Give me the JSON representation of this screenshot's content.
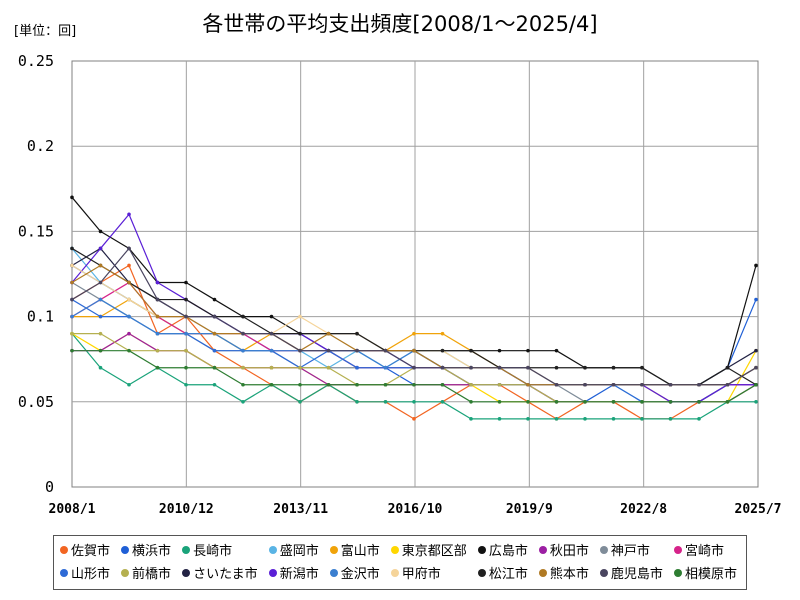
{
  "unit_label": "[単位：回]",
  "chart_data": {
    "type": "line",
    "title": "各世帯の平均支出頻度[2008/1～2025/4]",
    "xlabel": "",
    "ylabel": "",
    "x_start": "2008/1",
    "x_end": "2025/4",
    "ylim": [
      0,
      0.25
    ],
    "y_ticks": [
      "0",
      "0.05",
      "0.1",
      "0.15",
      "0.2",
      "0.25"
    ],
    "x_ticks": [
      "2008/1",
      "2010/12",
      "2013/11",
      "2016/10",
      "2019/9",
      "2022/8",
      "2025/7"
    ],
    "grid": true,
    "legend_position": "bottom",
    "series": [
      {
        "name": "佐賀市",
        "color": "#f26522",
        "values": [
          0.11,
          0.12,
          0.13,
          0.09,
          0.1,
          0.08,
          0.07,
          0.06,
          0.05,
          0.06,
          0.05,
          0.05,
          0.04,
          0.05,
          0.06,
          0.06,
          0.05,
          0.04,
          0.05,
          0.05,
          0.04,
          0.04,
          0.05,
          0.06,
          0.06
        ]
      },
      {
        "name": "横浜市",
        "color": "#1f5fd6",
        "values": [
          0.13,
          0.12,
          0.11,
          0.1,
          0.1,
          0.09,
          0.09,
          0.08,
          0.08,
          0.08,
          0.07,
          0.07,
          0.06,
          0.06,
          0.06,
          0.06,
          0.06,
          0.05,
          0.05,
          0.06,
          0.06,
          0.06,
          0.06,
          0.07,
          0.11
        ]
      },
      {
        "name": "長崎市",
        "color": "#1aa37a",
        "values": [
          0.09,
          0.07,
          0.06,
          0.07,
          0.06,
          0.06,
          0.05,
          0.06,
          0.05,
          0.06,
          0.05,
          0.05,
          0.05,
          0.05,
          0.04,
          0.04,
          0.04,
          0.04,
          0.04,
          0.04,
          0.04,
          0.04,
          0.04,
          0.05,
          0.05
        ]
      },
      {
        "name": "盛岡市",
        "color": "#5ab4e5",
        "values": [
          0.14,
          0.12,
          0.11,
          0.1,
          0.09,
          0.09,
          0.08,
          0.08,
          0.08,
          0.07,
          0.08,
          0.07,
          0.08,
          0.08,
          0.07,
          0.07,
          0.06,
          0.06,
          0.06,
          0.06,
          0.05,
          0.05,
          0.05,
          0.06,
          0.06
        ]
      },
      {
        "name": "富山市",
        "color": "#f0a30a",
        "values": [
          0.1,
          0.1,
          0.11,
          0.1,
          0.09,
          0.09,
          0.08,
          0.09,
          0.08,
          0.08,
          0.08,
          0.08,
          0.09,
          0.09,
          0.08,
          0.07,
          0.06,
          0.06,
          0.06,
          0.06,
          0.06,
          0.05,
          0.05,
          0.06,
          0.07
        ]
      },
      {
        "name": "東京都区部",
        "color": "#ffd700",
        "values": [
          0.09,
          0.08,
          0.09,
          0.08,
          0.08,
          0.07,
          0.07,
          0.07,
          0.07,
          0.06,
          0.06,
          0.06,
          0.06,
          0.06,
          0.06,
          0.05,
          0.05,
          0.05,
          0.05,
          0.05,
          0.05,
          0.05,
          0.05,
          0.05,
          0.08
        ]
      },
      {
        "name": "広島市",
        "color": "#111111",
        "values": [
          0.17,
          0.15,
          0.14,
          0.12,
          0.12,
          0.11,
          0.1,
          0.1,
          0.09,
          0.09,
          0.09,
          0.08,
          0.08,
          0.08,
          0.08,
          0.08,
          0.08,
          0.08,
          0.07,
          0.07,
          0.07,
          0.06,
          0.06,
          0.07,
          0.13
        ]
      },
      {
        "name": "秋田市",
        "color": "#9c1fa3",
        "values": [
          0.08,
          0.08,
          0.09,
          0.08,
          0.08,
          0.07,
          0.07,
          0.07,
          0.07,
          0.06,
          0.06,
          0.06,
          0.06,
          0.06,
          0.06,
          0.06,
          0.06,
          0.05,
          0.05,
          0.05,
          0.05,
          0.05,
          0.05,
          0.05,
          0.06
        ]
      },
      {
        "name": "神戸市",
        "color": "#7f8c99",
        "values": [
          0.12,
          0.11,
          0.1,
          0.09,
          0.09,
          0.08,
          0.08,
          0.08,
          0.07,
          0.07,
          0.07,
          0.07,
          0.07,
          0.07,
          0.06,
          0.06,
          0.06,
          0.06,
          0.05,
          0.05,
          0.05,
          0.05,
          0.05,
          0.06,
          0.06
        ]
      },
      {
        "name": "宮崎市",
        "color": "#d6238a",
        "values": [
          0.1,
          0.11,
          0.12,
          0.1,
          0.09,
          0.09,
          0.09,
          0.08,
          0.08,
          0.08,
          0.07,
          0.07,
          0.07,
          0.07,
          0.06,
          0.06,
          0.06,
          0.06,
          0.06,
          0.06,
          0.06,
          0.06,
          0.06,
          0.06,
          0.06
        ]
      },
      {
        "name": "山形市",
        "color": "#2e6ad6",
        "values": [
          0.11,
          0.1,
          0.1,
          0.09,
          0.09,
          0.08,
          0.08,
          0.08,
          0.07,
          0.08,
          0.07,
          0.07,
          0.07,
          0.07,
          0.06,
          0.06,
          0.06,
          0.06,
          0.06,
          0.06,
          0.05,
          0.05,
          0.05,
          0.06,
          0.07
        ]
      },
      {
        "name": "前橋市",
        "color": "#b5b050",
        "values": [
          0.09,
          0.09,
          0.08,
          0.08,
          0.08,
          0.07,
          0.07,
          0.07,
          0.07,
          0.07,
          0.06,
          0.06,
          0.07,
          0.07,
          0.06,
          0.06,
          0.06,
          0.05,
          0.05,
          0.05,
          0.05,
          0.05,
          0.05,
          0.05,
          0.06
        ]
      },
      {
        "name": "さいたま市",
        "color": "#222244",
        "values": [
          0.13,
          0.14,
          0.12,
          0.11,
          0.1,
          0.1,
          0.09,
          0.09,
          0.09,
          0.08,
          0.08,
          0.08,
          0.08,
          0.07,
          0.07,
          0.07,
          0.07,
          0.06,
          0.06,
          0.06,
          0.06,
          0.06,
          0.06,
          0.07,
          0.08
        ]
      },
      {
        "name": "新潟市",
        "color": "#5a1fd6",
        "values": [
          0.12,
          0.14,
          0.16,
          0.12,
          0.11,
          0.1,
          0.09,
          0.09,
          0.09,
          0.08,
          0.08,
          0.08,
          0.07,
          0.07,
          0.07,
          0.07,
          0.06,
          0.06,
          0.06,
          0.06,
          0.06,
          0.05,
          0.05,
          0.06,
          0.06
        ]
      },
      {
        "name": "金沢市",
        "color": "#3b7fd0",
        "values": [
          0.1,
          0.11,
          0.1,
          0.09,
          0.09,
          0.09,
          0.08,
          0.08,
          0.08,
          0.08,
          0.08,
          0.07,
          0.08,
          0.07,
          0.07,
          0.07,
          0.06,
          0.06,
          0.06,
          0.06,
          0.06,
          0.06,
          0.06,
          0.06,
          0.07
        ]
      },
      {
        "name": "甲府市",
        "color": "#f5d49a",
        "values": [
          0.13,
          0.12,
          0.11,
          0.1,
          0.1,
          0.09,
          0.09,
          0.09,
          0.1,
          0.09,
          0.09,
          0.08,
          0.08,
          0.08,
          0.07,
          0.07,
          0.07,
          0.06,
          0.06,
          0.06,
          0.06,
          0.06,
          0.06,
          0.06,
          0.07
        ]
      },
      {
        "name": "松江市",
        "color": "#202020",
        "values": [
          0.14,
          0.13,
          0.12,
          0.11,
          0.11,
          0.1,
          0.1,
          0.09,
          0.09,
          0.09,
          0.09,
          0.08,
          0.08,
          0.08,
          0.08,
          0.07,
          0.07,
          0.07,
          0.07,
          0.07,
          0.07,
          0.06,
          0.06,
          0.07,
          0.06
        ]
      },
      {
        "name": "熊本市",
        "color": "#b07a24",
        "values": [
          0.12,
          0.13,
          0.12,
          0.1,
          0.1,
          0.09,
          0.09,
          0.09,
          0.08,
          0.09,
          0.08,
          0.08,
          0.08,
          0.07,
          0.07,
          0.07,
          0.06,
          0.06,
          0.06,
          0.06,
          0.06,
          0.06,
          0.06,
          0.06,
          0.07
        ]
      },
      {
        "name": "鹿児島市",
        "color": "#4a4560",
        "values": [
          0.11,
          0.12,
          0.14,
          0.11,
          0.1,
          0.1,
          0.09,
          0.09,
          0.08,
          0.08,
          0.08,
          0.08,
          0.07,
          0.07,
          0.07,
          0.07,
          0.07,
          0.06,
          0.06,
          0.06,
          0.06,
          0.06,
          0.06,
          0.06,
          0.07
        ]
      },
      {
        "name": "相模原市",
        "color": "#2e7d32",
        "values": [
          0.08,
          0.08,
          0.08,
          0.07,
          0.07,
          0.07,
          0.06,
          0.06,
          0.06,
          0.06,
          0.06,
          0.06,
          0.06,
          0.06,
          0.05,
          0.05,
          0.05,
          0.05,
          0.05,
          0.05,
          0.05,
          0.05,
          0.05,
          0.05,
          0.06
        ]
      }
    ]
  }
}
